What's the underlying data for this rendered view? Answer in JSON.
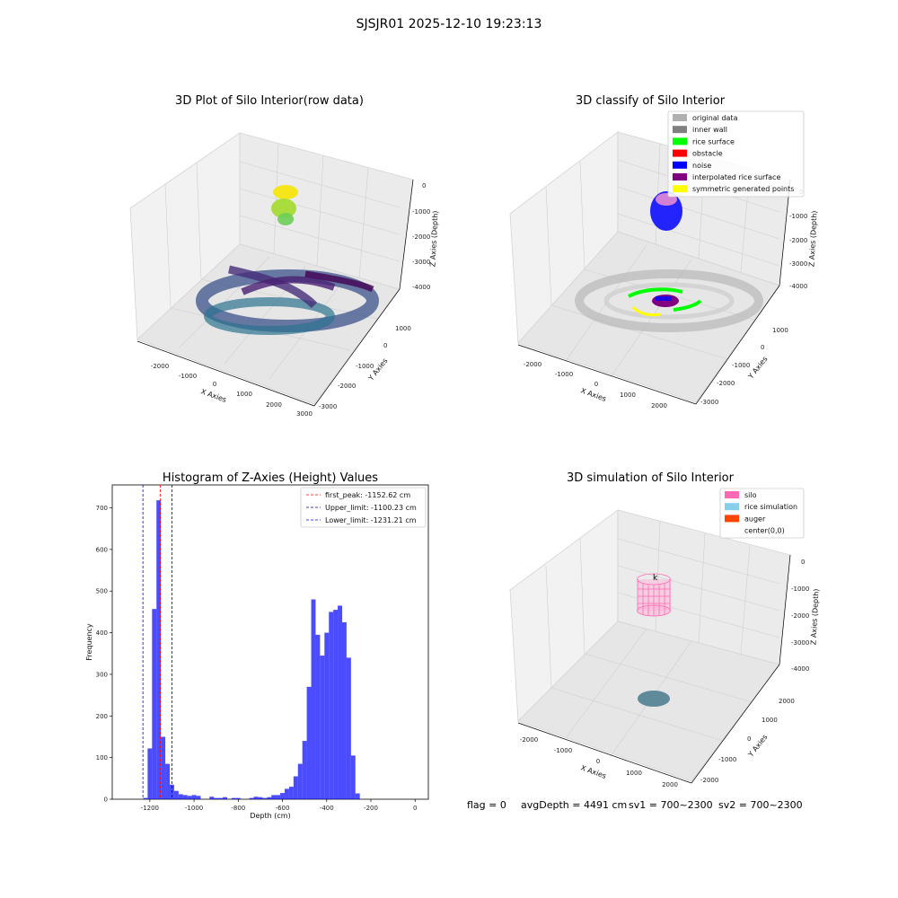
{
  "suptitle": "SJSJR01 2025-12-10 19:23:13",
  "panel1": {
    "title": "3D Plot of Silo Interior(row data)",
    "xlabel": "X Axies",
    "ylabel": "Y Axies",
    "zlabel": "Z Axies (Depth)",
    "xticks": [
      "-2000",
      "-1000",
      "0",
      "1000",
      "2000",
      "3000"
    ],
    "yticks": [
      "1000",
      "0",
      "-1000",
      "-2000",
      "-3000"
    ],
    "zticks": [
      "0",
      "-1000",
      "-2000",
      "-3000",
      "-4000"
    ]
  },
  "panel2": {
    "title": "3D classify of Silo Interior",
    "xlabel": "X Axies",
    "ylabel": "Y Axies",
    "zlabel": "Z Axies (Depth)",
    "xticks": [
      "-2000",
      "-1000",
      "0",
      "1000",
      "2000"
    ],
    "yticks": [
      "1000",
      "0",
      "-1000",
      "-2000",
      "-3000"
    ],
    "zticks": [
      "0",
      "-1000",
      "-2000",
      "-3000",
      "-4000"
    ],
    "legend": [
      {
        "label": "original data",
        "color": "#b0b0b0"
      },
      {
        "label": "inner wall",
        "color": "#808080"
      },
      {
        "label": "rice surface",
        "color": "#00ff00"
      },
      {
        "label": "obstacle",
        "color": "#ff0000"
      },
      {
        "label": "noise",
        "color": "#0000ff"
      },
      {
        "label": "interpolated rice surface",
        "color": "#800080"
      },
      {
        "label": "symmetric generated points",
        "color": "#ffff00"
      }
    ]
  },
  "panel4": {
    "title": "3D simulation of Silo Interior",
    "xlabel": "X Axies",
    "ylabel": "Y Axies",
    "zlabel": "Z Axies (Depth)",
    "xticks": [
      "-2000",
      "-1000",
      "0",
      "1000",
      "2000"
    ],
    "yticks": [
      "2000",
      "1000",
      "0",
      "-1000",
      "-2000"
    ],
    "zticks": [
      "0",
      "-1000",
      "-2000",
      "-3000",
      "-4000"
    ],
    "legend": [
      {
        "label": "silo",
        "color": "#ff69b4"
      },
      {
        "label": "rice simulation",
        "color": "#87ceeb"
      },
      {
        "label": "auger",
        "color": "#ff4500"
      },
      {
        "label": "center(0,0)",
        "color": "#ffffff"
      }
    ]
  },
  "footer": {
    "flag": "flag = 0",
    "avg": "avgDepth = 4491 cm",
    "sv1": "sv1 = 700~2300",
    "sv2": "sv2 = 700~2300"
  },
  "chart_data": [
    {
      "type": "histogram",
      "title": "Histogram of Z-Axies (Height) Values",
      "xlabel": "Depth (cm)",
      "ylabel": "Frequency",
      "xlim": [
        -1370,
        60
      ],
      "ylim": [
        0,
        755
      ],
      "xticks": [
        -1200,
        -1000,
        -800,
        -600,
        -400,
        -200,
        0
      ],
      "yticks": [
        0,
        100,
        200,
        300,
        400,
        500,
        600,
        700
      ],
      "bin_width": 20,
      "bin_start": -1230,
      "counts": [
        3,
        122,
        457,
        718,
        150,
        85,
        35,
        20,
        12,
        10,
        8,
        10,
        8,
        0,
        0,
        6,
        3,
        3,
        5,
        0,
        3,
        3,
        0,
        0,
        3,
        6,
        5,
        3,
        5,
        10,
        10,
        15,
        25,
        30,
        55,
        85,
        140,
        270,
        480,
        395,
        345,
        400,
        450,
        455,
        465,
        425,
        340,
        105,
        14
      ],
      "bar_color": "#0000ff",
      "vlines": [
        {
          "label": "first_peak: -1152.62 cm",
          "x": -1152.62,
          "color": "#ff0000"
        },
        {
          "label": "Upper_limit: -1100.23 cm",
          "x": -1100.23,
          "color": "#00008b"
        },
        {
          "label": "Lower_limit: -1231.21 cm",
          "x": -1231.21,
          "color": "#0000ff"
        }
      ],
      "legend_position": "upper right"
    }
  ]
}
